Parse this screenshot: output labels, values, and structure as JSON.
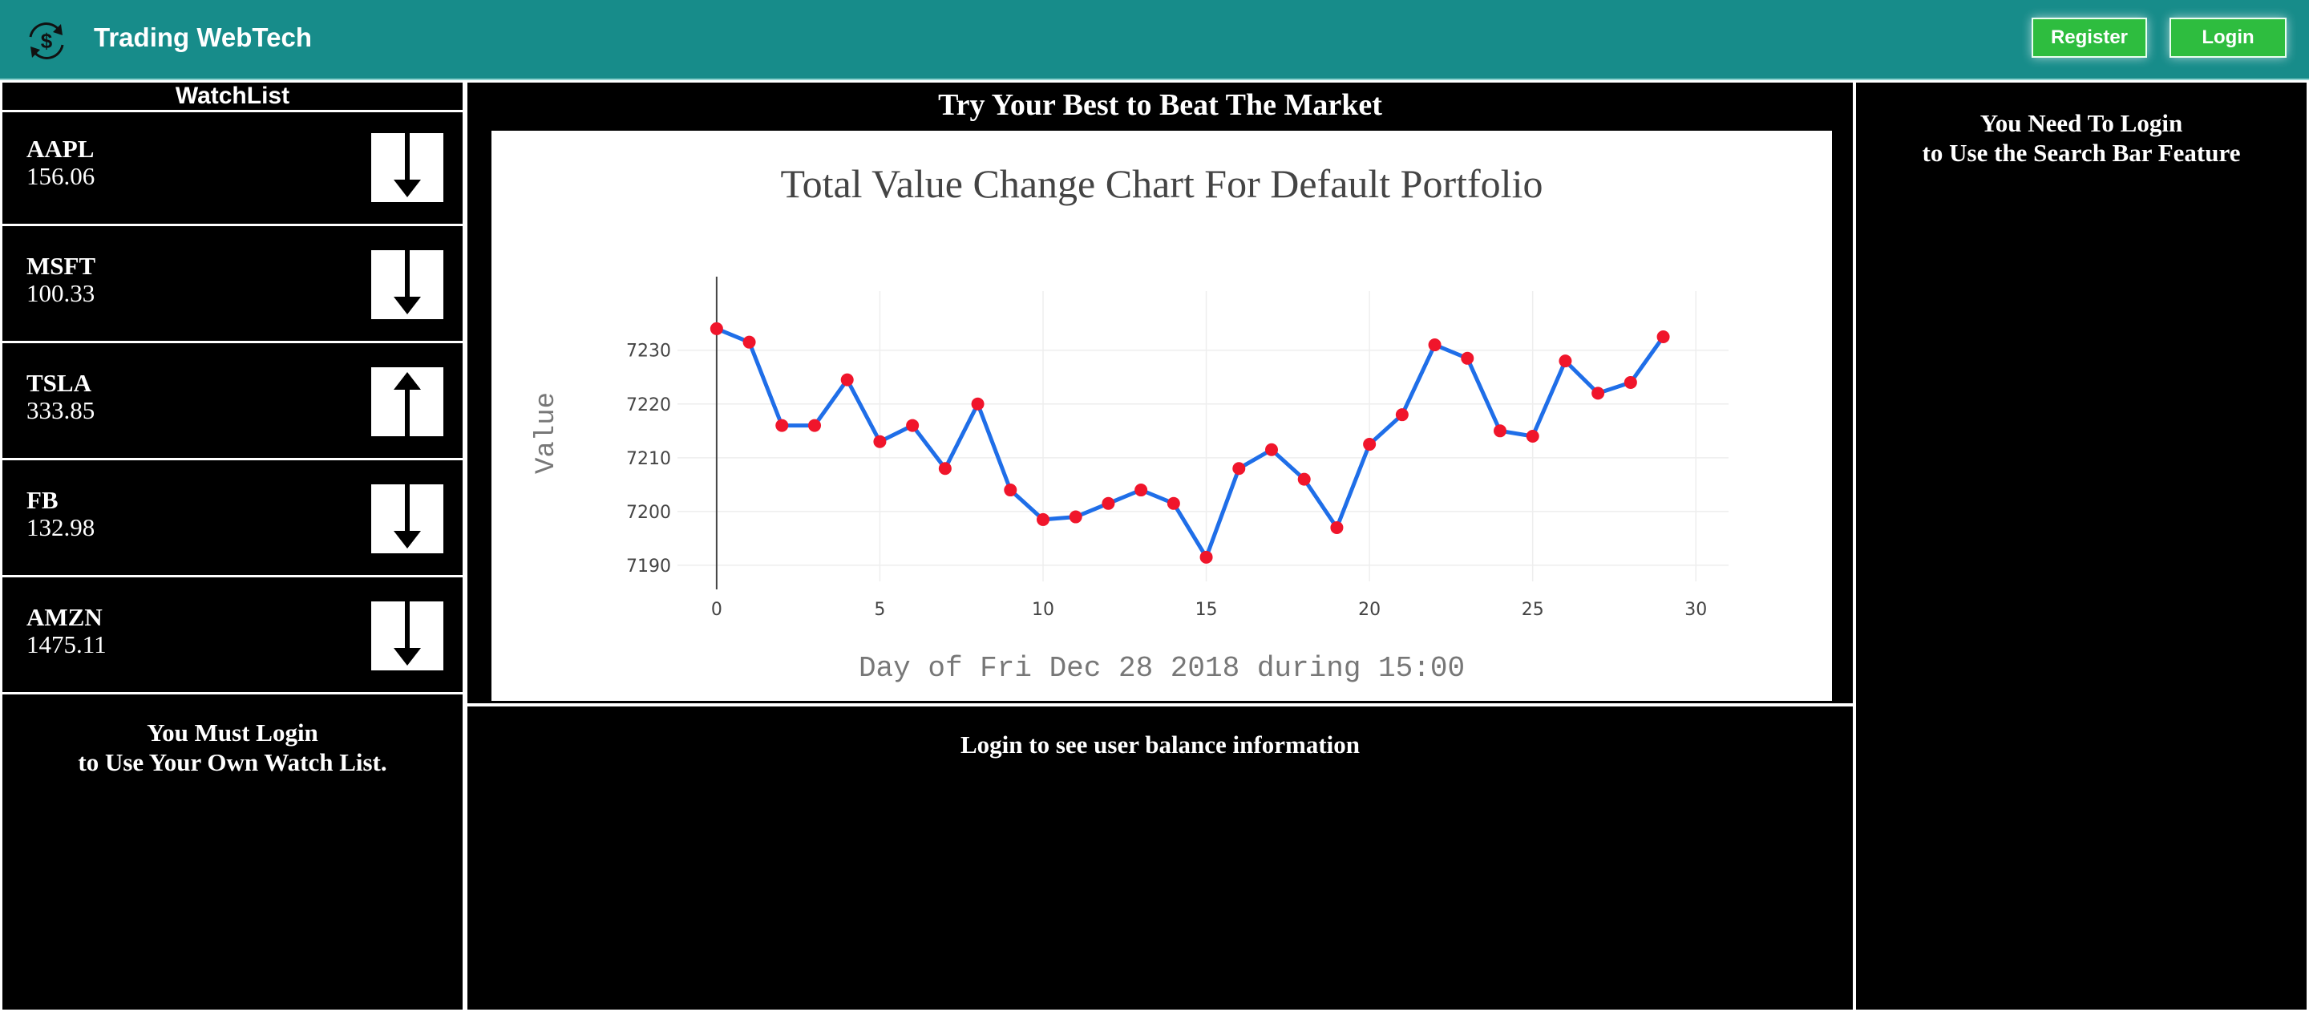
{
  "header": {
    "title": "Trading WebTech",
    "register_label": "Register",
    "login_label": "Login",
    "logo_icon": "dollar-refresh-icon"
  },
  "watchlist": {
    "title": "WatchList",
    "items": [
      {
        "symbol": "AAPL",
        "price": "156.06",
        "trend": "down"
      },
      {
        "symbol": "MSFT",
        "price": "100.33",
        "trend": "down"
      },
      {
        "symbol": "TSLA",
        "price": "333.85",
        "trend": "up"
      },
      {
        "symbol": "FB",
        "price": "132.98",
        "trend": "down"
      },
      {
        "symbol": "AMZN",
        "price": "1475.11",
        "trend": "down"
      }
    ],
    "login_msg_line1": "You Must Login",
    "login_msg_line2": "to Use Your Own Watch List."
  },
  "center": {
    "title": "Try Your Best to Beat The Market",
    "balance_msg": "Login to see user balance information"
  },
  "search": {
    "msg_line1": "You Need To Login",
    "msg_line2": "to Use the Search Bar Feature"
  },
  "colors": {
    "navbar": "#178c8a",
    "button": "#2ebd3f",
    "line": "#1f6ee8",
    "marker": "#f0152b"
  },
  "chart_data": {
    "type": "line",
    "title": "Total Value Change Chart For Default Portfolio",
    "xlabel": "Day of Fri Dec 28 2018 during 15:00",
    "ylabel": "Value",
    "xlim": [
      -1.2,
      31
    ],
    "ylim": [
      7187,
      7241
    ],
    "xticks": [
      0,
      5,
      10,
      15,
      20,
      25,
      30
    ],
    "yticks": [
      7190,
      7200,
      7210,
      7220,
      7230
    ],
    "grid": true,
    "x": [
      0,
      1,
      2,
      3,
      4,
      5,
      6,
      7,
      8,
      9,
      10,
      11,
      12,
      13,
      14,
      15,
      16,
      17,
      18,
      19,
      20,
      21,
      22,
      23,
      24,
      25,
      26,
      27,
      28,
      29
    ],
    "values": [
      7234,
      7231.5,
      7216,
      7216,
      7224.5,
      7213,
      7216,
      7208,
      7220,
      7204,
      7198.5,
      7199,
      7201.5,
      7204,
      7201.5,
      7191.5,
      7208,
      7211.5,
      7206,
      7197,
      7212.5,
      7218,
      7231,
      7228.5,
      7215,
      7214,
      7228,
      7222,
      7224,
      7232.5
    ]
  }
}
